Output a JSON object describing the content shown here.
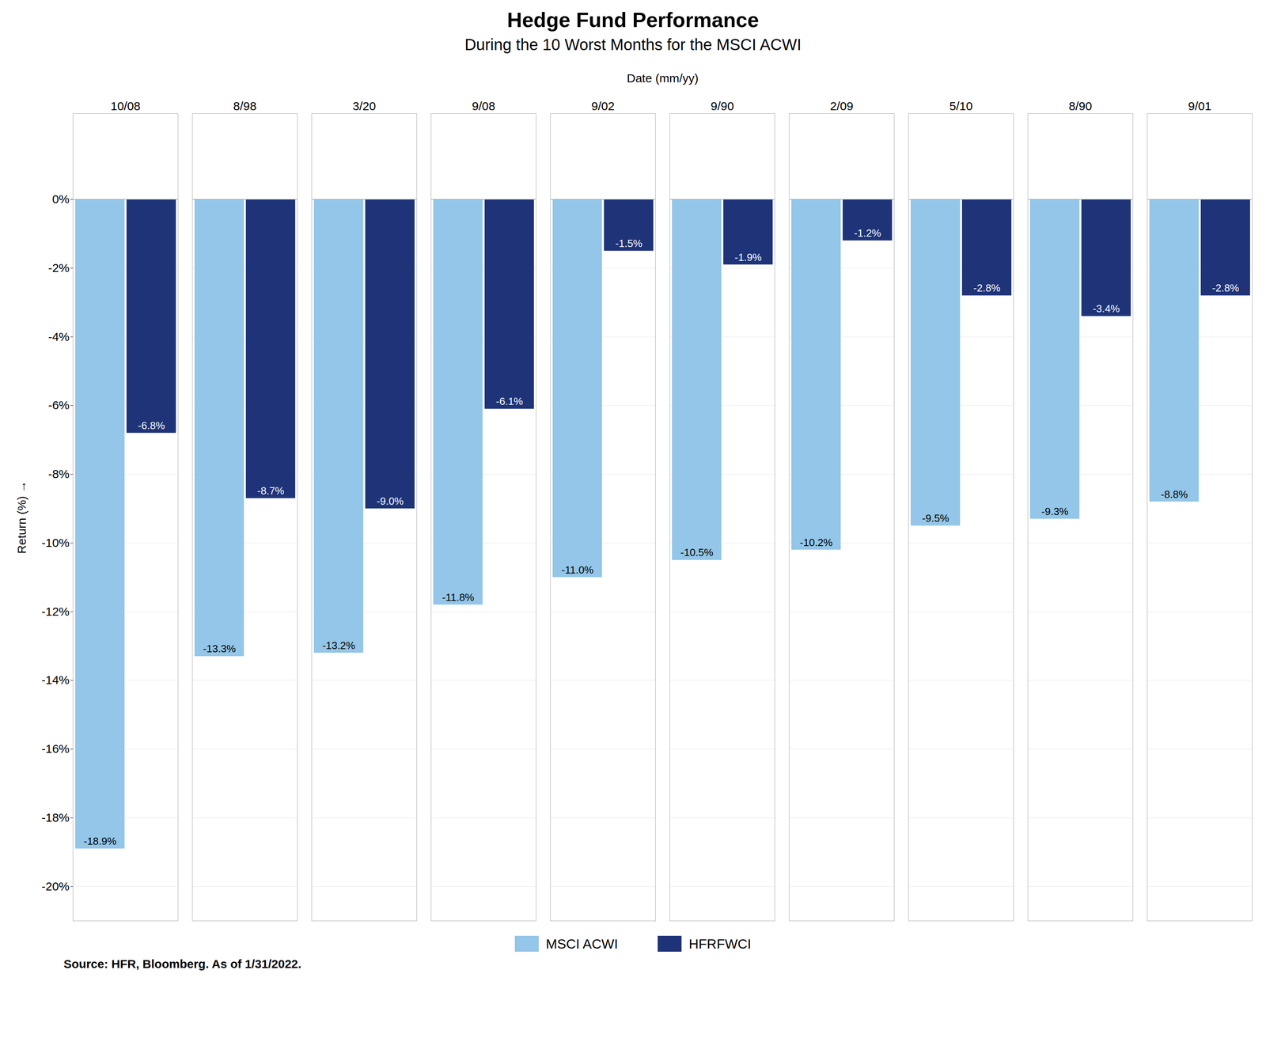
{
  "chart_data": {
    "type": "bar",
    "title": "Hedge Fund Performance",
    "subtitle": "During the 10 Worst Months for the MSCI ACWI",
    "xlabel": "Date (mm/yy)",
    "ylabel": "Return (%)",
    "source": "Source: HFR, Bloomberg. As of 1/31/2022.",
    "categories": [
      "10/08",
      "8/98",
      "3/20",
      "9/08",
      "9/02",
      "9/90",
      "2/09",
      "5/10",
      "8/90",
      "9/01"
    ],
    "series": [
      {
        "name": "MSCI ACWI",
        "color": "#93c6e8",
        "values": [
          -18.9,
          -13.3,
          -13.2,
          -11.8,
          -11.0,
          -10.5,
          -10.2,
          -9.5,
          -9.3,
          -8.8
        ],
        "value_labels": [
          "-18.9%",
          "-13.3%",
          "-13.2%",
          "-11.8%",
          "-11.0%",
          "-10.5%",
          "-10.2%",
          "-9.5%",
          "-9.3%",
          "-8.8%"
        ]
      },
      {
        "name": "HFRFWCI",
        "color": "#1f3478",
        "values": [
          -6.8,
          -8.7,
          -9.0,
          -6.1,
          -1.5,
          -1.9,
          -1.2,
          -2.8,
          -3.4,
          -2.8
        ],
        "value_labels": [
          "-6.8%",
          "-8.7%",
          "-9.0%",
          "-6.1%",
          "-1.5%",
          "-1.9%",
          "-1.2%",
          "-2.8%",
          "-3.4%",
          "-2.8%"
        ]
      }
    ],
    "ylim": [
      -21,
      2.5
    ],
    "yticks": [
      {
        "value": 0,
        "label": "0%"
      },
      {
        "value": -2,
        "label": "-2%"
      },
      {
        "value": -4,
        "label": "-4%"
      },
      {
        "value": -6,
        "label": "-6%"
      },
      {
        "value": -8,
        "label": "-8%"
      },
      {
        "value": -10,
        "label": "-10%"
      },
      {
        "value": -12,
        "label": "-12%"
      },
      {
        "value": -14,
        "label": "-14%"
      },
      {
        "value": -16,
        "label": "-16%"
      },
      {
        "value": -18,
        "label": "-18%"
      },
      {
        "value": -20,
        "label": "-20%"
      }
    ],
    "grid": true,
    "legend": "bottom",
    "data_labels": true
  }
}
